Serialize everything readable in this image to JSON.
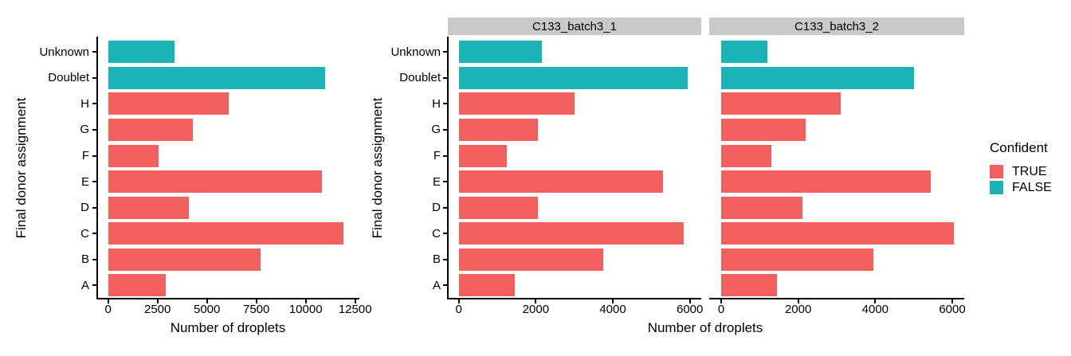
{
  "figure": {
    "y_axis_title": "Final donor assignment",
    "x_axis_title": "Number of droplets",
    "background": "#FFFFFF",
    "facets": {
      "strip_fill": "#C9C9C9",
      "strip_text_color": "#000000"
    },
    "axis_color": "#000000"
  },
  "legend": {
    "title": "Confident",
    "position": "right",
    "items": [
      {
        "label": "TRUE",
        "color": "#F25F5C"
      },
      {
        "label": "FALSE",
        "color": "#1AB4B6"
      }
    ]
  },
  "chart_data": [
    {
      "type": "bar",
      "orientation": "horizontal",
      "facet": "",
      "title": "",
      "xlabel": "Number of droplets",
      "ylabel": "Final donor assignment",
      "categories": [
        "Unknown",
        "Doublet",
        "H",
        "G",
        "F",
        "E",
        "D",
        "C",
        "B",
        "A"
      ],
      "values": [
        3350,
        11000,
        6100,
        4300,
        2550,
        10800,
        4100,
        11900,
        7700,
        2900
      ],
      "confident": [
        "FALSE",
        "FALSE",
        "TRUE",
        "TRUE",
        "TRUE",
        "TRUE",
        "TRUE",
        "TRUE",
        "TRUE",
        "TRUE"
      ],
      "xlim": [
        0,
        12740
      ],
      "xticks": [
        0,
        2500,
        5000,
        7500,
        10000,
        12500
      ],
      "grid": false,
      "legend_position": "none"
    },
    {
      "type": "bar",
      "orientation": "horizontal",
      "facet": "C133_batch3_1",
      "title": "C133_batch3_1",
      "xlabel": "Number of droplets",
      "ylabel": "Final donor assignment",
      "categories": [
        "Unknown",
        "Doublet",
        "H",
        "G",
        "F",
        "E",
        "D",
        "C",
        "B",
        "A"
      ],
      "values": [
        2150,
        5950,
        3000,
        2050,
        1250,
        5300,
        2050,
        5850,
        3750,
        1450
      ],
      "confident": [
        "FALSE",
        "FALSE",
        "TRUE",
        "TRUE",
        "TRUE",
        "TRUE",
        "TRUE",
        "TRUE",
        "TRUE",
        "TRUE"
      ],
      "xlim": [
        0,
        6320
      ],
      "xticks": [
        0,
        2000,
        4000,
        6000
      ],
      "grid": false,
      "legend_position": "right"
    },
    {
      "type": "bar",
      "orientation": "horizontal",
      "facet": "C133_batch3_2",
      "title": "C133_batch3_2",
      "xlabel": "Number of droplets",
      "ylabel": "Final donor assignment",
      "categories": [
        "Unknown",
        "Doublet",
        "H",
        "G",
        "F",
        "E",
        "D",
        "C",
        "B",
        "A"
      ],
      "values": [
        1200,
        5000,
        3100,
        2200,
        1300,
        5450,
        2100,
        6050,
        3950,
        1450
      ],
      "confident": [
        "FALSE",
        "FALSE",
        "TRUE",
        "TRUE",
        "TRUE",
        "TRUE",
        "TRUE",
        "TRUE",
        "TRUE",
        "TRUE"
      ],
      "xlim": [
        0,
        6320
      ],
      "xticks": [
        0,
        2000,
        4000,
        6000
      ],
      "grid": false,
      "legend_position": "right"
    }
  ]
}
